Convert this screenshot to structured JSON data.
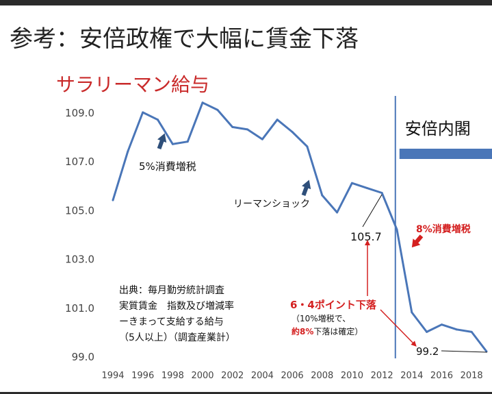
{
  "slide_title": "参考：安倍政権で大幅に賃金下落",
  "chart_data": {
    "type": "line",
    "title": "サラリーマン給与",
    "xlabel": "",
    "ylabel": "",
    "x_ticks": [
      "1994",
      "1996",
      "1998",
      "2000",
      "2002",
      "2004",
      "2006",
      "2008",
      "2010",
      "2012",
      "2014",
      "2016",
      "2018"
    ],
    "y_ticks": [
      "99.0",
      "101.0",
      "103.0",
      "105.0",
      "107.0",
      "109.0"
    ],
    "xlim": [
      1993.5,
      2019.3
    ],
    "ylim": [
      99.0,
      109.0
    ],
    "series": [
      {
        "color": "#4a76b8",
        "x": [
          1994,
          1995,
          1996,
          1997,
          1998,
          1999,
          2000,
          2001,
          2002,
          2003,
          2004,
          2005,
          2006,
          2007,
          2008,
          2009,
          2010,
          2011,
          2012,
          2013,
          2014,
          2015,
          2016,
          2017,
          2018,
          2019
        ],
        "y": [
          105.4,
          107.4,
          109.0,
          108.7,
          107.7,
          107.8,
          109.4,
          109.1,
          108.4,
          108.3,
          107.9,
          108.7,
          108.2,
          107.6,
          105.6,
          104.9,
          106.1,
          105.9,
          105.7,
          104.2,
          100.8,
          100.0,
          100.3,
          100.1,
          100.0,
          99.2
        ]
      }
    ],
    "abe_cabinet": {
      "label": "安倍内閣",
      "start_x": 2012.9,
      "color": "#4a76b8"
    },
    "annotations": {
      "tax5": "5%消費増税",
      "lehman": "リーマンショック",
      "tax8": "8%消費増税",
      "val_1057": "105.7",
      "val_992": "99.2",
      "drop_main": "6・4ポイント下落",
      "drop_sub1": "（10%増税で、",
      "drop_sub2_red": "約8%",
      "drop_sub2_rest": "下落は確定）"
    },
    "source_lines": [
      "出典：毎月勤労統計調査",
      "実質賃金　指数及び増減率",
      "ーきまって支給する給与",
      "（5人以上）（調査産業計）"
    ],
    "line_color": "#4a76b8",
    "accent_red": "#d42020"
  }
}
